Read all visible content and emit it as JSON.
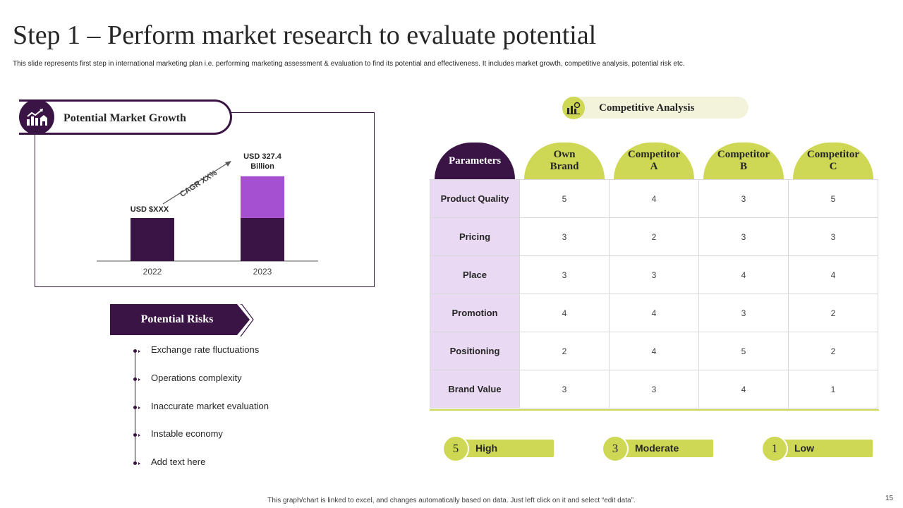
{
  "title": "Step 1 – Perform market research to evaluate potential",
  "subtitle": "This slide represents first step in international marketing plan i.e. performing marketing assessment & evaluation to find its potential and effectiveness. It includes market growth, competitive analysis, potential risk etc.",
  "growth": {
    "label": "Potential Market Growth",
    "icon": "growth-chart-icon",
    "cagr_label": "CAGR XX%",
    "chart_data": {
      "type": "bar",
      "categories": [
        "2022",
        "2023"
      ],
      "series": [
        {
          "values": [
            1,
            1
          ],
          "color": "#3a1444"
        },
        {
          "values": [
            0,
            0.97
          ],
          "color": "#a550d1"
        }
      ],
      "data_labels": [
        "USD $XXX",
        "USD 327.4 Billion"
      ]
    }
  },
  "risks": {
    "label": "Potential Risks",
    "items": [
      "Exchange rate fluctuations",
      "Operations complexity",
      "Inaccurate market evaluation",
      "Instable economy",
      "Add text here"
    ]
  },
  "competitive": {
    "label": "Competitive Analysis",
    "icon": "analysis-chart-icon",
    "headers": [
      "Parameters",
      "Own Brand",
      "Competitor A",
      "Competitor B",
      "Competitor C"
    ],
    "rows": [
      [
        "Product Quality",
        "5",
        "4",
        "3",
        "5"
      ],
      [
        "Pricing",
        "3",
        "2",
        "3",
        "3"
      ],
      [
        "Place",
        "3",
        "3",
        "4",
        "4"
      ],
      [
        "Promotion",
        "4",
        "4",
        "3",
        "2"
      ],
      [
        "Positioning",
        "2",
        "4",
        "5",
        "2"
      ],
      [
        "Brand Value",
        "3",
        "3",
        "4",
        "1"
      ]
    ]
  },
  "legend": [
    {
      "num": "5",
      "label": "High"
    },
    {
      "num": "3",
      "label": "Moderate"
    },
    {
      "num": "1",
      "label": "Low"
    }
  ],
  "colors": {
    "dark_purple": "#3a1444",
    "light_purple": "#a550d1",
    "lime": "#cfd854",
    "pale_purple": "#ead9f2"
  },
  "footer": "This graph/chart is linked to excel, and changes automatically based on data. Just left click on it and select “edit data”.",
  "page_number": "15"
}
